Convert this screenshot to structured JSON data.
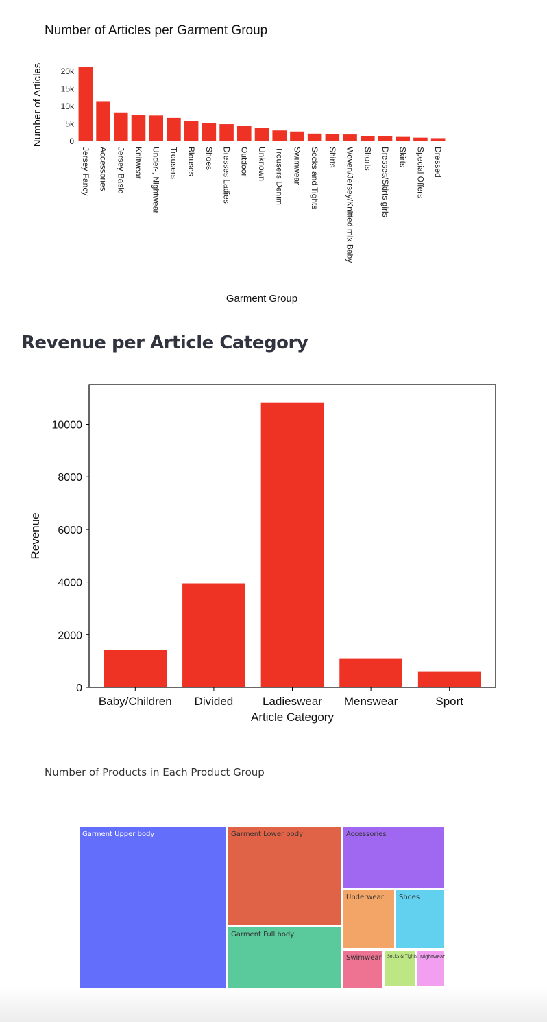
{
  "chart_data": [
    {
      "type": "bar",
      "title": "Number of Articles per Garment Group",
      "xlabel": "Garment Group",
      "ylabel": "Number of Articles",
      "ylim": [
        0,
        22000
      ],
      "yticks": [
        0,
        5000,
        10000,
        15000,
        20000
      ],
      "ytick_labels": [
        "0",
        "5k",
        "10k",
        "15k",
        "20k"
      ],
      "grid": false,
      "color": "#ee3324",
      "categories": [
        "Jersey Fancy",
        "Accessories",
        "Jersey Basic",
        "Knitwear",
        "Under-, Nightwear",
        "Trousers",
        "Blouses",
        "Shoes",
        "Dresses Ladies",
        "Outdoor",
        "Unknown",
        "Trousers Denim",
        "Swimwear",
        "Socks and Tights",
        "Shirts",
        "Woven/Jersey/Knitted mix Baby",
        "Shorts",
        "Dresses/Skirts girls",
        "Skirts",
        "Special Offers",
        "Dressed"
      ],
      "values": [
        21400,
        11500,
        8100,
        7500,
        7400,
        6700,
        5800,
        5200,
        4900,
        4500,
        3900,
        3100,
        2800,
        2200,
        2100,
        1950,
        1550,
        1500,
        1250,
        1050,
        900
      ]
    },
    {
      "type": "bar",
      "title": "Revenue per Article Category",
      "xlabel": "Article Category",
      "ylabel": "Revenue",
      "ylim": [
        0,
        11500
      ],
      "yticks": [
        0,
        2000,
        4000,
        6000,
        8000,
        10000
      ],
      "grid": false,
      "color": "#ee3324",
      "categories": [
        "Baby/Children",
        "Divided",
        "Ladieswear",
        "Menswear",
        "Sport"
      ],
      "values": [
        1430,
        3950,
        10830,
        1080,
        610
      ]
    },
    {
      "type": "treemap",
      "title": "Number of Products in Each Product Group",
      "items": [
        {
          "label": "Garment Upper body",
          "color": "#636efa",
          "text_color": "#ffffff"
        },
        {
          "label": "Garment Lower body",
          "color": "#e06247",
          "text_color": "#333333"
        },
        {
          "label": "Garment Full body",
          "color": "#5ac99b",
          "text_color": "#333333"
        },
        {
          "label": "Accessories",
          "color": "#a067f0",
          "text_color": "#333333"
        },
        {
          "label": "Underwear",
          "color": "#f2a566",
          "text_color": "#333333"
        },
        {
          "label": "Shoes",
          "color": "#62d1ef",
          "text_color": "#333333"
        },
        {
          "label": "Swimwear",
          "color": "#ee7392",
          "text_color": "#333333"
        },
        {
          "label": "Socks & Tights",
          "color": "#bde685",
          "text_color": "#333333"
        },
        {
          "label": "Nightwear",
          "color": "#f29ff0",
          "text_color": "#333333"
        }
      ]
    }
  ]
}
